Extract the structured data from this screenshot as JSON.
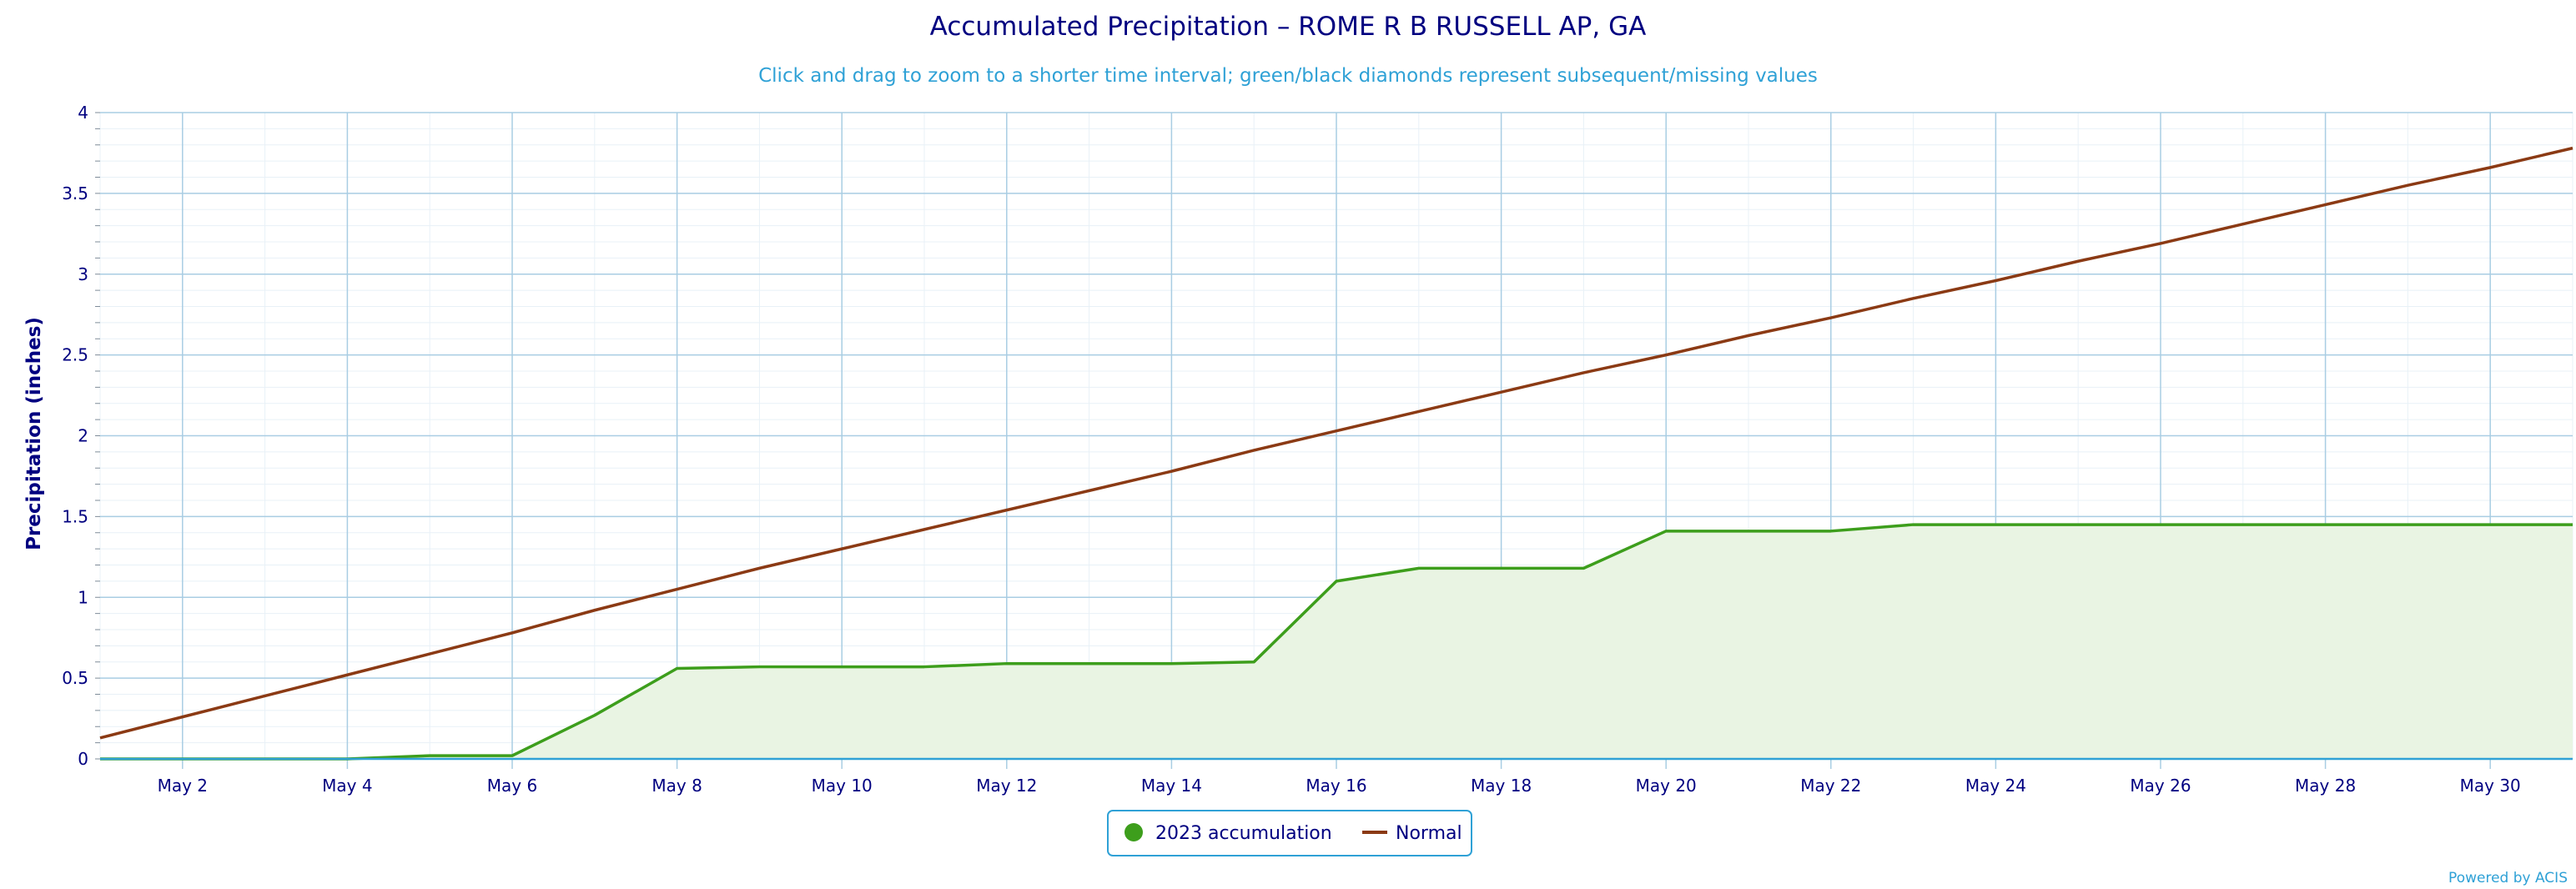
{
  "chart_data": {
    "type": "line",
    "title": "Accumulated Precipitation – ROME R B RUSSELL AP, GA",
    "subtitle": "Click and drag to zoom to a shorter time interval; green/black diamonds represent subsequent/missing values",
    "ylabel": "Precipitation (inches)",
    "xlabel": "",
    "xlim": [
      1,
      31
    ],
    "ylim": [
      0,
      4
    ],
    "y_ticks": [
      0,
      0.5,
      1,
      1.5,
      2,
      2.5,
      3,
      3.5,
      4
    ],
    "y_tick_labels": [
      "0",
      "0.5",
      "1",
      "1.5",
      "2",
      "2.5",
      "3",
      "3.5",
      "4"
    ],
    "x_ticks": [
      2,
      4,
      6,
      8,
      10,
      12,
      14,
      16,
      18,
      20,
      22,
      24,
      26,
      28,
      30
    ],
    "x_tick_labels": [
      "May 2",
      "May 4",
      "May 6",
      "May 8",
      "May 10",
      "May 12",
      "May 14",
      "May 16",
      "May 18",
      "May 20",
      "May 22",
      "May 24",
      "May 26",
      "May 28",
      "May 30"
    ],
    "grid": true,
    "legend_position": "bottom-center",
    "x": [
      1,
      2,
      3,
      4,
      5,
      6,
      7,
      8,
      9,
      10,
      11,
      12,
      13,
      14,
      15,
      16,
      17,
      18,
      19,
      20,
      21,
      22,
      23,
      24,
      25,
      26,
      27,
      28,
      29,
      30,
      31
    ],
    "series": [
      {
        "name": "2023 accumulation",
        "color": "#3d9e1c",
        "fill": "#e9f4e3",
        "marker": "circle",
        "values": [
          0,
          0,
          0,
          0,
          0.02,
          0.02,
          0.27,
          0.56,
          0.57,
          0.57,
          0.57,
          0.59,
          0.59,
          0.59,
          0.6,
          1.1,
          1.18,
          1.18,
          1.18,
          1.41,
          1.41,
          1.41,
          1.45,
          1.45,
          1.45,
          1.45,
          1.45,
          1.45,
          1.45,
          1.45,
          1.45
        ]
      },
      {
        "name": "Normal",
        "color": "#8b3a14",
        "marker": "line",
        "values": [
          0.13,
          0.26,
          0.39,
          0.52,
          0.65,
          0.78,
          0.92,
          1.05,
          1.18,
          1.3,
          1.42,
          1.54,
          1.66,
          1.78,
          1.91,
          2.03,
          2.15,
          2.27,
          2.39,
          2.5,
          2.62,
          2.73,
          2.85,
          2.96,
          3.08,
          3.19,
          3.31,
          3.43,
          3.55,
          3.66,
          3.78
        ]
      }
    ]
  },
  "credit": "Powered by ACIS",
  "colors": {
    "grid": "#a9cde3",
    "minor_grid": "#e8f1f7",
    "axis": "#2fa1d6",
    "legend_border": "#2fa1d6"
  }
}
